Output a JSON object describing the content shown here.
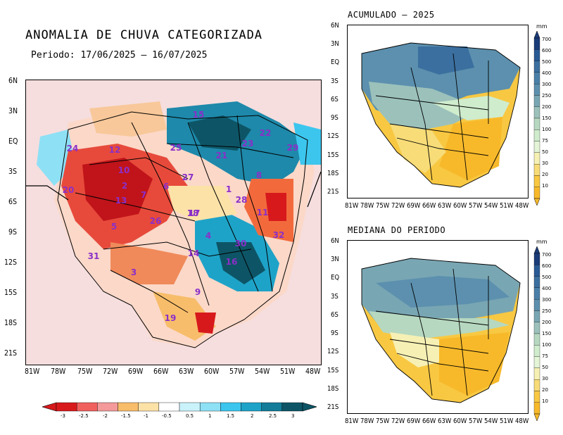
{
  "main": {
    "title": "ANOMALIA DE CHUVA CATEGORIZADA",
    "period": "Periodo: 17/06/2025 – 16/07/2025",
    "lat_ticks": [
      "6N",
      "3N",
      "EQ",
      "3S",
      "6S",
      "9S",
      "12S",
      "15S",
      "18S",
      "21S"
    ],
    "lon_ticks": [
      "81W",
      "78W",
      "75W",
      "72W",
      "69W",
      "66W",
      "63W",
      "60W",
      "57W",
      "54W",
      "51W",
      "48W"
    ],
    "basin_labels": [
      {
        "id": "1"
      },
      {
        "id": "2"
      },
      {
        "id": "3"
      },
      {
        "id": "4"
      },
      {
        "id": "5"
      },
      {
        "id": "6"
      },
      {
        "id": "7"
      },
      {
        "id": "8"
      },
      {
        "id": "9"
      },
      {
        "id": "10"
      },
      {
        "id": "11"
      },
      {
        "id": "12"
      },
      {
        "id": "13"
      },
      {
        "id": "14"
      },
      {
        "id": "15"
      },
      {
        "id": "16"
      },
      {
        "id": "17"
      },
      {
        "id": "18"
      },
      {
        "id": "19"
      },
      {
        "id": "20"
      },
      {
        "id": "21"
      },
      {
        "id": "22"
      },
      {
        "id": "23"
      },
      {
        "id": "24"
      },
      {
        "id": "25"
      },
      {
        "id": "26"
      },
      {
        "id": "27"
      },
      {
        "id": "28"
      },
      {
        "id": "29"
      },
      {
        "id": "30"
      },
      {
        "id": "31"
      },
      {
        "id": "32"
      }
    ],
    "colorbar": {
      "labels": [
        "-3",
        "-2.5",
        "-2",
        "-1.5",
        "-1",
        "-0.5",
        "0.5",
        "1",
        "1.5",
        "2",
        "2.5",
        "3"
      ],
      "colors": [
        "#d7191c",
        "#f0605d",
        "#f49a9a",
        "#f8bd6a",
        "#fde2a8",
        "#ffffff",
        "#c9f2fb",
        "#8ee0f5",
        "#3cc6ee",
        "#1ea3c8",
        "#137c98",
        "#0d5566"
      ]
    }
  },
  "acumulado": {
    "title": "ACUMULADO – 2025",
    "lat_ticks": [
      "6N",
      "3N",
      "EQ",
      "3S",
      "6S",
      "9S",
      "12S",
      "15S",
      "18S",
      "21S"
    ],
    "lon_ticks": [
      "81W",
      "78W",
      "75W",
      "72W",
      "69W",
      "66W",
      "63W",
      "60W",
      "57W",
      "54W",
      "51W",
      "48W"
    ],
    "unit": "mm",
    "colorbar_labels": [
      "700",
      "600",
      "500",
      "400",
      "300",
      "250",
      "200",
      "150",
      "100",
      "75",
      "50",
      "30",
      "20",
      "10"
    ]
  },
  "mediana": {
    "title": "MEDIANA DO PERIODO",
    "lat_ticks": [
      "6N",
      "3N",
      "EQ",
      "3S",
      "6S",
      "9S",
      "12S",
      "15S",
      "18S",
      "21S"
    ],
    "lon_ticks": [
      "81W",
      "78W",
      "75W",
      "72W",
      "69W",
      "66W",
      "63W",
      "60W",
      "57W",
      "54W",
      "51W",
      "48W"
    ],
    "unit": "mm",
    "colorbar_labels": [
      "700",
      "600",
      "500",
      "400",
      "300",
      "250",
      "200",
      "150",
      "100",
      "75",
      "50",
      "30",
      "20",
      "10"
    ]
  },
  "accum_colors": [
    "#1b3b78",
    "#2a5a96",
    "#3b6f9f",
    "#4a80a8",
    "#5c90ae",
    "#79a6b3",
    "#9cc1bb",
    "#b6d8c0",
    "#cfeccd",
    "#e4f4d6",
    "#f6f0b4",
    "#f7dc78",
    "#f8c842",
    "#f7b92a"
  ]
}
